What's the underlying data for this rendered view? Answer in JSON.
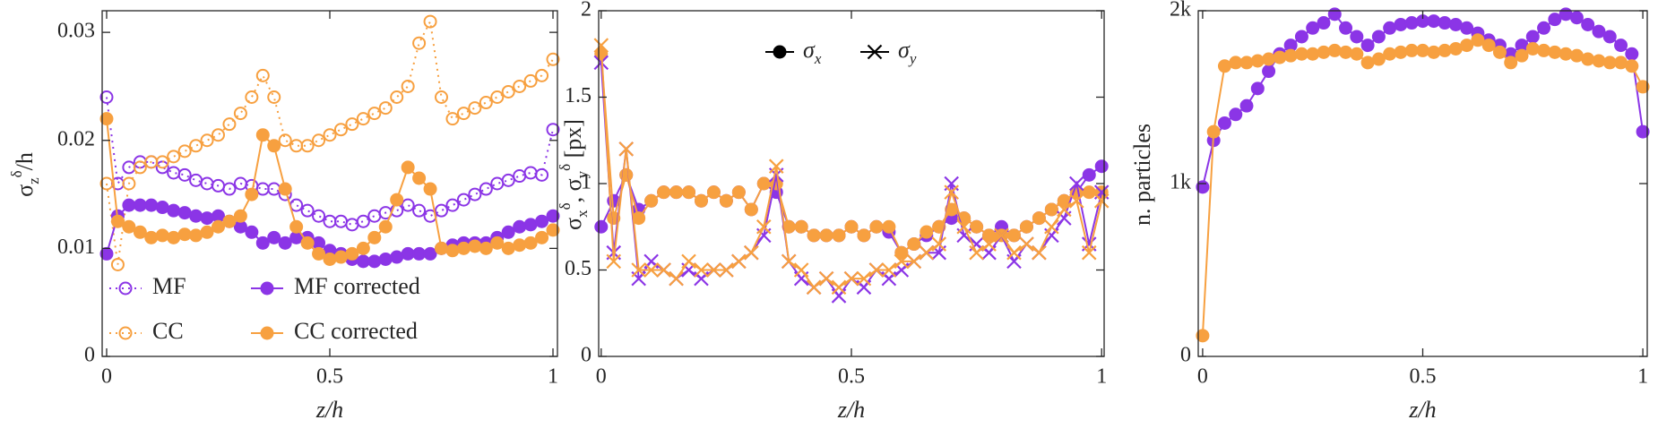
{
  "chart_data": [
    {
      "type": "line",
      "x": [
        0,
        0.025,
        0.05,
        0.075,
        0.1,
        0.125,
        0.15,
        0.175,
        0.2,
        0.225,
        0.25,
        0.275,
        0.3,
        0.325,
        0.35,
        0.375,
        0.4,
        0.425,
        0.45,
        0.475,
        0.5,
        0.525,
        0.55,
        0.575,
        0.6,
        0.625,
        0.65,
        0.675,
        0.7,
        0.725,
        0.75,
        0.775,
        0.8,
        0.825,
        0.85,
        0.875,
        0.9,
        0.925,
        0.95,
        0.975,
        1
      ],
      "xlabel": "z/h",
      "ylabel": [
        {
          "text": "σ"
        },
        {
          "text": "z",
          "shift": "sub"
        },
        {
          "text": "δ",
          "shift": "super"
        },
        {
          "text": "/h"
        }
      ],
      "xlim": [
        -0.01,
        1.01
      ],
      "xticks": [
        0,
        0.5,
        1
      ],
      "ylim": [
        0,
        0.032
      ],
      "yticks": [
        0,
        0.01,
        0.02,
        0.03
      ],
      "legend": {
        "position": "lower left",
        "columns": 2
      },
      "series": [
        {
          "name": "MF",
          "color": "#8b35e6",
          "marker": "circle",
          "filled": false,
          "line_style": "dotted",
          "values": [
            0.024,
            0.016,
            0.0175,
            0.018,
            0.018,
            0.0175,
            0.017,
            0.0168,
            0.0163,
            0.016,
            0.0158,
            0.0155,
            0.016,
            0.0158,
            0.0155,
            0.0155,
            0.015,
            0.014,
            0.0135,
            0.013,
            0.0125,
            0.0125,
            0.0122,
            0.0125,
            0.013,
            0.0133,
            0.0135,
            0.014,
            0.0135,
            0.013,
            0.0135,
            0.014,
            0.0145,
            0.015,
            0.0155,
            0.016,
            0.0163,
            0.0167,
            0.017,
            0.0168,
            0.021
          ]
        },
        {
          "name": "CC",
          "color": "#f7a040",
          "marker": "circle",
          "filled": false,
          "line_style": "dotted",
          "values": [
            0.016,
            0.0085,
            0.016,
            0.0175,
            0.018,
            0.018,
            0.0185,
            0.019,
            0.0195,
            0.02,
            0.0205,
            0.0215,
            0.0225,
            0.024,
            0.026,
            0.024,
            0.02,
            0.0195,
            0.0195,
            0.02,
            0.0205,
            0.021,
            0.0215,
            0.022,
            0.0225,
            0.023,
            0.024,
            0.025,
            0.029,
            0.031,
            0.024,
            0.022,
            0.0225,
            0.023,
            0.0235,
            0.024,
            0.0245,
            0.025,
            0.0255,
            0.026,
            0.0275
          ]
        },
        {
          "name": "MF corrected",
          "color": "#8b35e6",
          "marker": "circle",
          "filled": true,
          "line_style": "solid",
          "values": [
            0.0095,
            0.013,
            0.014,
            0.014,
            0.014,
            0.0138,
            0.0135,
            0.0133,
            0.013,
            0.0128,
            0.013,
            0.0125,
            0.012,
            0.0115,
            0.0105,
            0.011,
            0.0105,
            0.011,
            0.011,
            0.0105,
            0.0098,
            0.0095,
            0.009,
            0.0088,
            0.0088,
            0.009,
            0.0092,
            0.0095,
            0.0095,
            0.0095,
            0.01,
            0.0103,
            0.0105,
            0.0105,
            0.0105,
            0.011,
            0.0115,
            0.012,
            0.0122,
            0.0125,
            0.013
          ]
        },
        {
          "name": "CC corrected",
          "color": "#f7a040",
          "marker": "circle",
          "filled": true,
          "line_style": "solid",
          "values": [
            0.022,
            0.0125,
            0.012,
            0.0115,
            0.011,
            0.0112,
            0.011,
            0.0113,
            0.0112,
            0.0115,
            0.012,
            0.0125,
            0.013,
            0.015,
            0.0205,
            0.0195,
            0.0155,
            0.012,
            0.0105,
            0.0095,
            0.009,
            0.0092,
            0.0095,
            0.01,
            0.011,
            0.012,
            0.0145,
            0.0175,
            0.0165,
            0.0155,
            0.01,
            0.0098,
            0.01,
            0.0102,
            0.01,
            0.0105,
            0.01,
            0.0103,
            0.0105,
            0.011,
            0.0117
          ]
        }
      ]
    },
    {
      "type": "line",
      "x": [
        0,
        0.025,
        0.05,
        0.075,
        0.1,
        0.125,
        0.15,
        0.175,
        0.2,
        0.225,
        0.25,
        0.275,
        0.3,
        0.325,
        0.35,
        0.375,
        0.4,
        0.425,
        0.45,
        0.475,
        0.5,
        0.525,
        0.55,
        0.575,
        0.6,
        0.625,
        0.65,
        0.675,
        0.7,
        0.725,
        0.75,
        0.775,
        0.8,
        0.825,
        0.85,
        0.875,
        0.9,
        0.925,
        0.95,
        0.975,
        1
      ],
      "xlabel": "z/h",
      "ylabel": [
        {
          "text": "σ"
        },
        {
          "text": "x",
          "shift": "sub"
        },
        {
          "text": "δ",
          "shift": "super"
        },
        {
          "text": ", σ"
        },
        {
          "text": "y",
          "shift": "sub"
        },
        {
          "text": "δ",
          "shift": "super"
        },
        {
          "text": " [px]"
        }
      ],
      "xlim": [
        -0.005,
        1.005
      ],
      "xticks": [
        0,
        0.5,
        1
      ],
      "ylim": [
        0,
        2
      ],
      "yticks": [
        0,
        0.5,
        1,
        1.5,
        2
      ],
      "legend": {
        "position": "upper center",
        "entries": [
          {
            "label": [
              {
                "text": "σ"
              },
              {
                "text": "x",
                "shift": "sub"
              }
            ],
            "marker": "circle",
            "color": "#000000"
          },
          {
            "label": [
              {
                "text": "σ"
              },
              {
                "text": "y",
                "shift": "sub"
              }
            ],
            "marker": "x",
            "color": "#000000"
          }
        ]
      },
      "series": [
        {
          "color": "#8b35e6",
          "marker": "circle",
          "filled": true,
          "line_style": "solid",
          "values": [
            0.75,
            0.9,
            1.05,
            0.85,
            0.9,
            0.95,
            0.95,
            0.95,
            0.9,
            0.95,
            0.9,
            0.95,
            0.85,
            1.0,
            0.95,
            0.75,
            0.75,
            0.7,
            0.7,
            0.7,
            0.75,
            0.7,
            0.75,
            0.72,
            0.6,
            0.65,
            0.7,
            0.75,
            0.8,
            0.8,
            0.75,
            0.7,
            0.75,
            0.7,
            0.75,
            0.8,
            0.85,
            0.9,
            0.95,
            1.05,
            1.1
          ]
        },
        {
          "color": "#f7a040",
          "marker": "circle",
          "filled": true,
          "line_style": "solid",
          "values": [
            1.75,
            0.8,
            1.05,
            0.8,
            0.9,
            0.95,
            0.95,
            0.95,
            0.9,
            0.95,
            0.9,
            0.95,
            0.85,
            1.0,
            1.0,
            0.75,
            0.75,
            0.7,
            0.7,
            0.7,
            0.75,
            0.7,
            0.75,
            0.75,
            0.6,
            0.65,
            0.72,
            0.75,
            0.85,
            0.8,
            0.75,
            0.7,
            0.7,
            0.7,
            0.75,
            0.8,
            0.85,
            0.9,
            0.95,
            0.95,
            0.95
          ]
        },
        {
          "color": "#8b35e6",
          "marker": "x",
          "filled": false,
          "line_style": "solid",
          "values": [
            1.7,
            0.6,
            1.2,
            0.45,
            0.55,
            0.5,
            0.45,
            0.5,
            0.45,
            0.5,
            0.5,
            0.55,
            0.6,
            0.7,
            1.05,
            0.55,
            0.45,
            0.4,
            0.45,
            0.35,
            0.45,
            0.4,
            0.5,
            0.45,
            0.5,
            0.55,
            0.6,
            0.6,
            1.0,
            0.7,
            0.65,
            0.6,
            0.7,
            0.55,
            0.65,
            0.6,
            0.7,
            0.8,
            1.0,
            0.65,
            0.95
          ]
        },
        {
          "color": "#f7a040",
          "marker": "x",
          "filled": false,
          "line_style": "solid",
          "values": [
            1.8,
            0.55,
            1.2,
            0.5,
            0.5,
            0.5,
            0.45,
            0.55,
            0.5,
            0.5,
            0.5,
            0.55,
            0.6,
            0.75,
            1.1,
            0.55,
            0.5,
            0.4,
            0.45,
            0.4,
            0.45,
            0.45,
            0.5,
            0.5,
            0.55,
            0.55,
            0.6,
            0.65,
            0.95,
            0.75,
            0.6,
            0.65,
            0.7,
            0.6,
            0.65,
            0.6,
            0.75,
            0.85,
            0.9,
            0.6,
            0.9
          ]
        }
      ]
    },
    {
      "type": "line",
      "x": [
        0,
        0.025,
        0.05,
        0.075,
        0.1,
        0.125,
        0.15,
        0.175,
        0.2,
        0.225,
        0.25,
        0.275,
        0.3,
        0.325,
        0.35,
        0.375,
        0.4,
        0.425,
        0.45,
        0.475,
        0.5,
        0.525,
        0.55,
        0.575,
        0.6,
        0.625,
        0.65,
        0.675,
        0.7,
        0.725,
        0.75,
        0.775,
        0.8,
        0.825,
        0.85,
        0.875,
        0.9,
        0.925,
        0.95,
        0.975,
        1
      ],
      "xlabel": "z/h",
      "ylabel": [
        {
          "text": "n. particles"
        }
      ],
      "xlim": [
        -0.01,
        1.01
      ],
      "xticks": [
        0,
        0.5,
        1
      ],
      "ylim": [
        0,
        2000
      ],
      "yticks": [
        0,
        {
          "value": 1000,
          "label": "1k"
        },
        {
          "value": 2000,
          "label": "2k"
        }
      ],
      "series": [
        {
          "color": "#8b35e6",
          "marker": "circle",
          "filled": true,
          "line_style": "solid",
          "values": [
            980,
            1250,
            1350,
            1400,
            1450,
            1550,
            1650,
            1750,
            1800,
            1850,
            1900,
            1930,
            1980,
            1900,
            1850,
            1800,
            1850,
            1900,
            1920,
            1930,
            1940,
            1940,
            1930,
            1920,
            1900,
            1870,
            1830,
            1800,
            1750,
            1800,
            1850,
            1900,
            1950,
            1980,
            1960,
            1920,
            1880,
            1850,
            1800,
            1750,
            1300
          ]
        },
        {
          "color": "#f7a040",
          "marker": "circle",
          "filled": true,
          "line_style": "solid",
          "values": [
            120,
            1300,
            1680,
            1700,
            1700,
            1710,
            1720,
            1730,
            1740,
            1750,
            1750,
            1760,
            1770,
            1760,
            1750,
            1700,
            1720,
            1750,
            1760,
            1770,
            1770,
            1760,
            1770,
            1780,
            1800,
            1830,
            1800,
            1760,
            1700,
            1740,
            1780,
            1770,
            1760,
            1750,
            1740,
            1720,
            1710,
            1700,
            1700,
            1680,
            1560
          ]
        }
      ]
    }
  ]
}
